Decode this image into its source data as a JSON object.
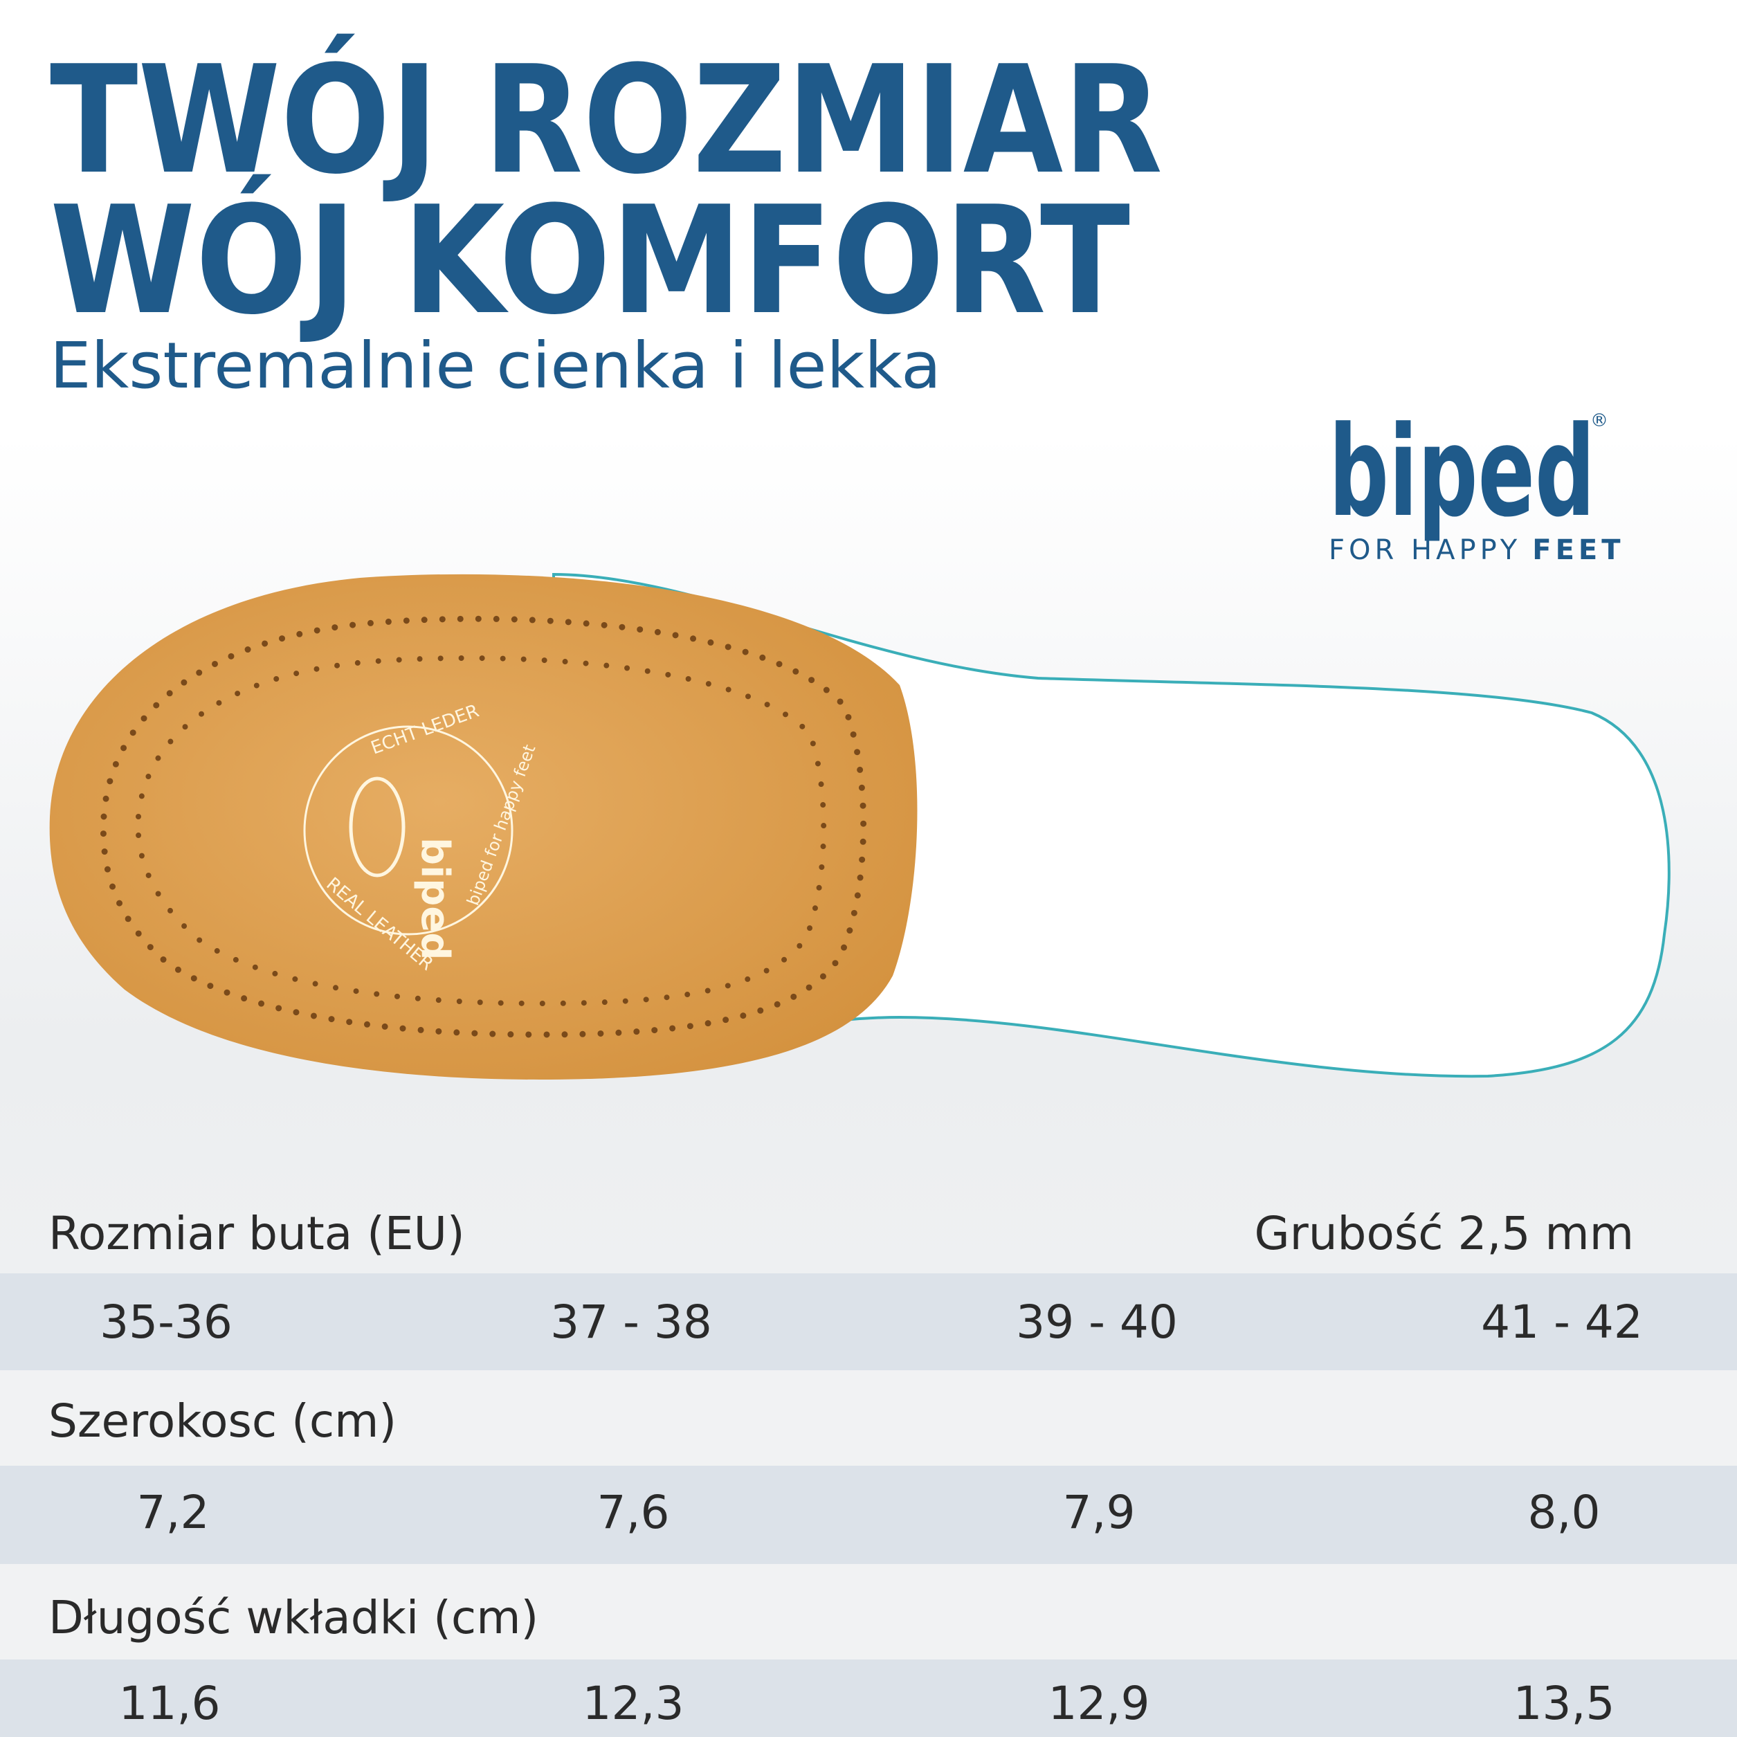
{
  "header": {
    "title": [
      "TWÓJ ROZMIAR",
      "WÓJ KOMFORT"
    ],
    "subtitle": "Ekstremalnie cienka i lekka"
  },
  "logo": {
    "name": "biped",
    "mark": "®",
    "tagline": "FOR HAPPY",
    "tagline_bold": "FEET"
  },
  "insole_imprint": [
    "ECHT LEDER",
    "REAL LEATHER",
    "biped for happy feet",
    "biped"
  ],
  "table": {
    "size_label": "Rozmiar buta (EU)",
    "thickness": "Grubość 2,5 mm",
    "sizes": [
      "35-36",
      "37 - 38",
      "39 - 40",
      "41 - 42"
    ],
    "width_label": "Szerokosc (cm)",
    "widths": [
      "7,2",
      "7,6",
      "7,9",
      "8,0"
    ],
    "length_label": "Długość wkładki (cm)",
    "lengths": [
      "11,6",
      "12,3",
      "12,9",
      "13,5"
    ]
  }
}
